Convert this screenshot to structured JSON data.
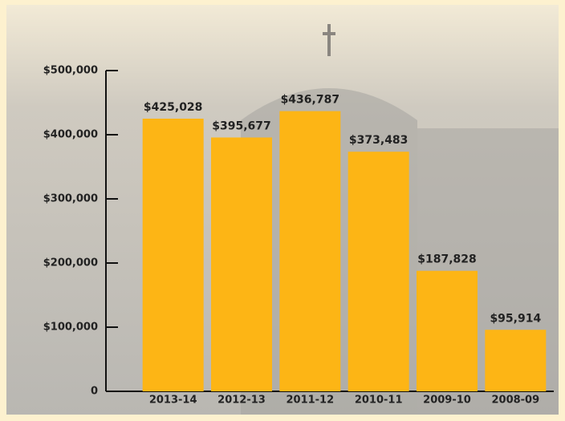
{
  "chart_data": {
    "type": "bar",
    "categories": [
      "2013-14",
      "2012-13",
      "2011-12",
      "2010-11",
      "2009-10",
      "2008-09"
    ],
    "values": [
      425028,
      395677,
      436787,
      373483,
      187828,
      95914
    ],
    "value_labels": [
      "$425,028",
      "$395,677",
      "$436,787",
      "$373,483",
      "$187,828",
      "$95,914"
    ],
    "color": "#fdb515",
    "ylim": [
      0,
      500000
    ],
    "yticks": [
      0,
      {
        "value": 100000,
        "label": "$100,000"
      },
      {
        "value": 200000,
        "label": "$200,000"
      },
      {
        "value": 300000,
        "label": "$300,000"
      },
      {
        "value": 400000,
        "label": "$400,000"
      },
      {
        "value": 500000,
        "label": "$500,000"
      }
    ],
    "grid": false
  }
}
